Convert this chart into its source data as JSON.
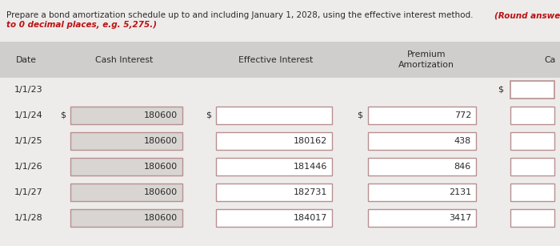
{
  "title_normal": "Prepare a bond amortization schedule up to and including January 1, 2028, using the effective interest method. ",
  "title_bold": "(Round answers",
  "title_line2": "to 0 decimal places, e.g. 5,275.)",
  "bg_color": "#eeeceb",
  "white_color": "#ffffff",
  "gray_box_color": "#d8d5d2",
  "header_bg": "#d0cecc",
  "box_border_pink": "#b89090",
  "dates": [
    "1/1/23",
    "1/1/24",
    "1/1/25",
    "1/1/26",
    "1/1/27",
    "1/1/28"
  ],
  "cash_interest": [
    null,
    180600,
    180600,
    180600,
    180600,
    180600
  ],
  "effective_interest": [
    null,
    null,
    180162,
    181446,
    182731,
    184017
  ],
  "premium_amortization": [
    null,
    772,
    438,
    846,
    2131,
    3417
  ],
  "text_color": "#2a2a2a",
  "bold_color": "#bb1111",
  "title_fontsize": 7.5,
  "header_fontsize": 7.8,
  "data_fontsize": 8.0
}
